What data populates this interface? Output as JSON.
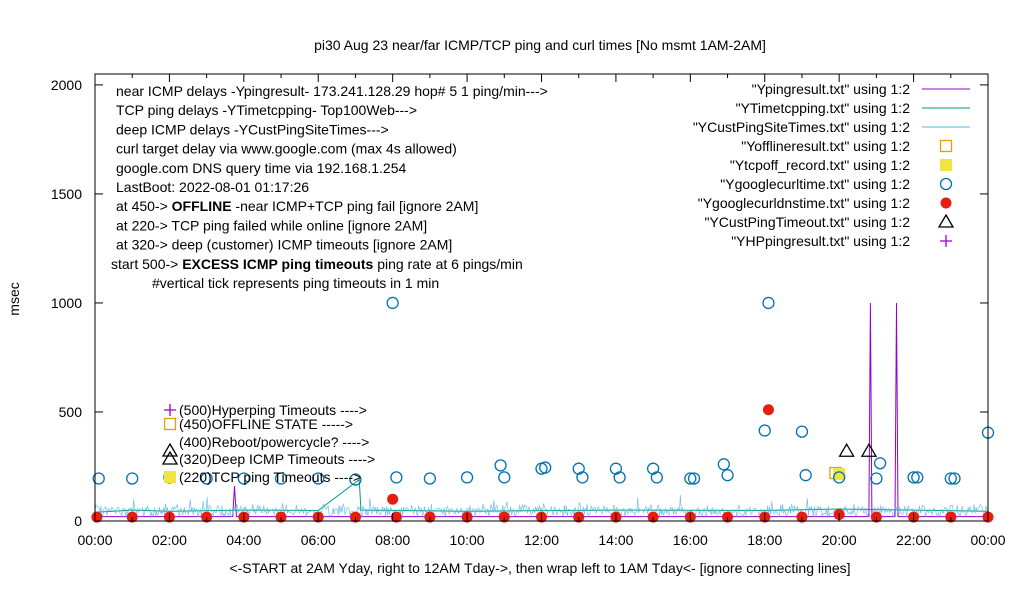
{
  "chart_data": {
    "type": "scatter",
    "title": "pi30 Aug 23  near/far ICMP/TCP ping and curl times [No msmt 1AM-2AM]",
    "ylabel": "msec",
    "xlabel": "<-START at 2AM Yday, right to 12AM Tday->, then wrap left to 1AM Tday<- [ignore connecting lines]",
    "xlim": [
      0,
      24
    ],
    "ylim": [
      0,
      2050
    ],
    "y_ticks": [
      0,
      500,
      1000,
      1500,
      2000
    ],
    "x_tick_labels": [
      "00:00",
      "02:00",
      "04:00",
      "06:00",
      "08:00",
      "10:00",
      "12:00",
      "14:00",
      "16:00",
      "18:00",
      "20:00",
      "22:00",
      "00:00"
    ],
    "grid": false,
    "legend_position": "top-right",
    "info_lines": [
      "near ICMP delays -Ypingresult- 173.241.128.29 hop# 5 1 ping/min--->",
      "TCP ping delays -YTimetcpping- Top100Web--->",
      "deep ICMP delays -YCustPingSiteTimes--->",
      "curl target delay via www.google.com (max 4s allowed)",
      "google.com DNS query time via 192.168.1.254",
      "LastBoot: 2022-08-01 01:17:26"
    ],
    "state_lines": [
      {
        "pre": "at 450-> ",
        "bold": "OFFLINE",
        "post": " -near ICMP+TCP ping fail [ignore 2AM]"
      },
      {
        "pre": "at 220-> TCP ping failed while online [ignore 2AM]",
        "bold": "",
        "post": ""
      },
      {
        "pre": "at 320-> deep (customer) ICMP timeouts [ignore 2AM]",
        "bold": "",
        "post": ""
      },
      {
        "pre": "start 500-> ",
        "bold": "EXCESS ICMP ping timeouts",
        "post": "  ping rate at 6 pings/min"
      }
    ],
    "tick_note": "#vertical tick represents ping timeouts in 1 min",
    "marker_labels": [
      {
        "y": 500,
        "text": "(500)Hyperping Timeouts ---->"
      },
      {
        "y": 450,
        "text": "(450)OFFLINE STATE ----->"
      },
      {
        "y": 400,
        "text": "(400)Reboot/powercycle? ---->"
      },
      {
        "y": 320,
        "text": "(320)Deep ICMP Timeouts ---->"
      },
      {
        "y": 220,
        "text": "(220)TCP ping Timeouts ---->"
      }
    ],
    "colors": {
      "ping": "#9400d3",
      "tcp": "#009e73",
      "cust": "#56b4e9",
      "offline": "#e69f00",
      "tcpoff": "#f0e442",
      "curl": "#0072b2",
      "dns": "#e51e10",
      "custtimeout": "#000000",
      "hp": "#9400d3"
    },
    "series": [
      {
        "name": "\"Ypingresult.txt\" using 1:2",
        "style": "line",
        "color": "ping",
        "points": [
          [
            0,
            20
          ],
          [
            2,
            20
          ],
          [
            3.7,
            20
          ],
          [
            3.75,
            160
          ],
          [
            3.8,
            20
          ],
          [
            20.8,
            20
          ],
          [
            20.84,
            1000
          ],
          [
            20.88,
            20
          ],
          [
            21.5,
            20
          ],
          [
            21.54,
            1000
          ],
          [
            21.58,
            20
          ],
          [
            24,
            20
          ]
        ]
      },
      {
        "name": "\"YTimetcpping.txt\" using 1:2",
        "style": "line",
        "color": "tcp",
        "points": [
          [
            0,
            40
          ],
          [
            1,
            50
          ],
          [
            2,
            45
          ],
          [
            4,
            50
          ],
          [
            6,
            48
          ],
          [
            7.1,
            190
          ],
          [
            7.15,
            50
          ],
          [
            10,
            45
          ],
          [
            14,
            50
          ],
          [
            18,
            48
          ],
          [
            20,
            55
          ],
          [
            22,
            50
          ],
          [
            24,
            45
          ]
        ]
      },
      {
        "name": "\"YCustPingSiteTimes.txt\" using 1:2",
        "style": "noise",
        "color": "cust",
        "base": 45,
        "amp": 35
      },
      {
        "name": "\"Yofflineresult.txt\" using 1:2",
        "style": "opensquare",
        "color": "offline",
        "points": [
          [
            19.9,
            220
          ]
        ]
      },
      {
        "name": "\"Ytcpoff_record.txt\" using 1:2",
        "style": "filledsquare",
        "color": "tcpoff",
        "points": [
          [
            20.0,
            215
          ]
        ]
      },
      {
        "name": "\"Ygooglecurltime.txt\" using 1:2",
        "style": "opencircle",
        "color": "curl",
        "points": [
          [
            0.1,
            195
          ],
          [
            1.0,
            195
          ],
          [
            2.0,
            200
          ],
          [
            3.0,
            195
          ],
          [
            4.0,
            195
          ],
          [
            5.0,
            195
          ],
          [
            6.0,
            195
          ],
          [
            7.0,
            190
          ],
          [
            8.0,
            1000
          ],
          [
            8.1,
            200
          ],
          [
            9.0,
            195
          ],
          [
            10.0,
            200
          ],
          [
            10.9,
            255
          ],
          [
            11.0,
            200
          ],
          [
            12.0,
            240
          ],
          [
            12.1,
            245
          ],
          [
            13.0,
            240
          ],
          [
            13.1,
            200
          ],
          [
            14.0,
            240
          ],
          [
            14.1,
            200
          ],
          [
            15.0,
            240
          ],
          [
            15.1,
            200
          ],
          [
            16.0,
            195
          ],
          [
            16.1,
            195
          ],
          [
            16.9,
            260
          ],
          [
            17.0,
            210
          ],
          [
            18.0,
            415
          ],
          [
            18.1,
            1000
          ],
          [
            19.0,
            410
          ],
          [
            19.1,
            210
          ],
          [
            20.0,
            200
          ],
          [
            21.0,
            195
          ],
          [
            21.1,
            265
          ],
          [
            22.0,
            200
          ],
          [
            22.1,
            200
          ],
          [
            23.0,
            195
          ],
          [
            23.1,
            195
          ],
          [
            24.0,
            405
          ]
        ]
      },
      {
        "name": "\"Ygooglecurldnstime.txt\" using 1:2",
        "style": "filledcircle",
        "color": "dns",
        "points": [
          [
            0.05,
            18
          ],
          [
            1.0,
            18
          ],
          [
            2.0,
            18
          ],
          [
            3.0,
            18
          ],
          [
            4.0,
            18
          ],
          [
            5.0,
            18
          ],
          [
            6.0,
            18
          ],
          [
            7.0,
            18
          ],
          [
            8.0,
            100
          ],
          [
            8.1,
            18
          ],
          [
            9.0,
            18
          ],
          [
            10.0,
            18
          ],
          [
            11.0,
            18
          ],
          [
            12.0,
            18
          ],
          [
            13.0,
            18
          ],
          [
            14.0,
            18
          ],
          [
            15.0,
            18
          ],
          [
            16.0,
            18
          ],
          [
            17.0,
            18
          ],
          [
            18.0,
            18
          ],
          [
            18.1,
            510
          ],
          [
            19.0,
            18
          ],
          [
            20.0,
            30
          ],
          [
            21.0,
            18
          ],
          [
            22.0,
            18
          ],
          [
            23.0,
            18
          ],
          [
            24.0,
            18
          ]
        ]
      },
      {
        "name": "\"YCustPingTimeout.txt\" using 1:2",
        "style": "opentriangle",
        "color": "custtimeout",
        "points": [
          [
            20.2,
            320
          ],
          [
            20.8,
            320
          ]
        ]
      },
      {
        "name": "\"YHPpingresult.txt\" using 1:2",
        "style": "plus",
        "color": "hp",
        "points": []
      }
    ]
  }
}
